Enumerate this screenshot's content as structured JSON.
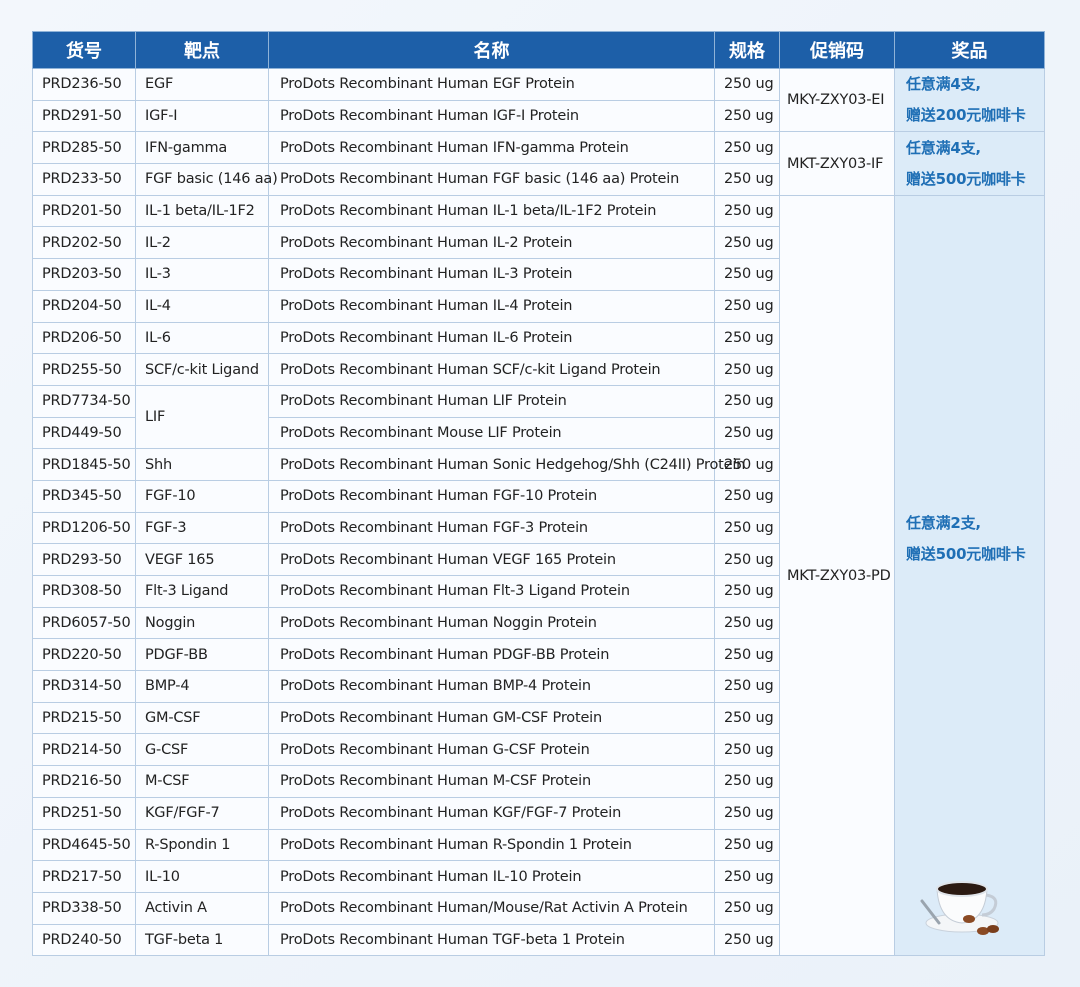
{
  "headers": [
    "货号",
    "靶点",
    "名称",
    "规格",
    "促销码",
    "奖品"
  ],
  "rows": [
    [
      "PRD236-50",
      "EGF",
      "ProDots Recombinant Human EGF Protein",
      "250 ug"
    ],
    [
      "PRD291-50",
      "IGF-I",
      "ProDots Recombinant Human IGF-I Protein",
      "250 ug"
    ],
    [
      "PRD285-50",
      "IFN-gamma",
      "ProDots Recombinant Human IFN-gamma Protein",
      "250 ug"
    ],
    [
      "PRD233-50",
      "FGF basic (146 aa)",
      "ProDots Recombinant Human FGF basic (146 aa) Protein",
      "250 ug"
    ],
    [
      "PRD201-50",
      "IL-1 beta/IL-1F2",
      "ProDots Recombinant Human IL-1 beta/IL-1F2 Protein",
      "250 ug"
    ],
    [
      "PRD202-50",
      "IL-2",
      "ProDots Recombinant Human IL-2 Protein",
      "250 ug"
    ],
    [
      "PRD203-50",
      "IL-3",
      "ProDots Recombinant Human IL-3 Protein",
      "250 ug"
    ],
    [
      "PRD204-50",
      "IL-4",
      "ProDots Recombinant Human IL-4 Protein",
      "250 ug"
    ],
    [
      "PRD206-50",
      "IL-6",
      "ProDots Recombinant Human IL-6 Protein",
      "250 ug"
    ],
    [
      "PRD255-50",
      "SCF/c-kit Ligand",
      "ProDots Recombinant Human SCF/c-kit Ligand Protein",
      "250 ug"
    ],
    [
      "PRD7734-50",
      "LIF",
      "ProDots Recombinant Human LIF Protein",
      "250 ug"
    ],
    [
      "PRD449-50",
      "",
      "ProDots Recombinant Mouse LIF Protein",
      "250 ug"
    ],
    [
      "PRD1845-50",
      "Shh",
      "ProDots Recombinant Human Sonic Hedgehog/Shh (C24II) Protein",
      "250 ug"
    ],
    [
      "PRD345-50",
      "FGF-10",
      "ProDots Recombinant Human FGF-10 Protein",
      "250 ug"
    ],
    [
      "PRD1206-50",
      "FGF-3",
      "ProDots Recombinant Human FGF-3 Protein",
      "250 ug"
    ],
    [
      "PRD293-50",
      "VEGF 165",
      "ProDots Recombinant Human VEGF 165 Protein",
      "250 ug"
    ],
    [
      "PRD308-50",
      "Flt-3 Ligand",
      "ProDots Recombinant Human Flt-3 Ligand Protein",
      "250 ug"
    ],
    [
      "PRD6057-50",
      "Noggin",
      "ProDots Recombinant Human Noggin Protein",
      "250 ug"
    ],
    [
      "PRD220-50",
      "PDGF-BB",
      "ProDots Recombinant Human PDGF-BB Protein",
      "250 ug"
    ],
    [
      "PRD314-50",
      "BMP-4",
      "ProDots Recombinant Human BMP-4 Protein",
      "250 ug"
    ],
    [
      "PRD215-50",
      "GM-CSF",
      "ProDots Recombinant Human GM-CSF Protein",
      "250 ug"
    ],
    [
      "PRD214-50",
      "G-CSF",
      "ProDots Recombinant Human G-CSF Protein",
      "250 ug"
    ],
    [
      "PRD216-50",
      "M-CSF",
      "ProDots Recombinant Human M-CSF Protein",
      "250 ug"
    ],
    [
      "PRD251-50",
      "KGF/FGF-7",
      "ProDots Recombinant Human KGF/FGF-7 Protein",
      "250 ug"
    ],
    [
      "PRD4645-50",
      "R-Spondin 1",
      "ProDots Recombinant Human R-Spondin 1 Protein",
      "250 ug"
    ],
    [
      "PRD217-50",
      "IL-10",
      "ProDots Recombinant Human IL-10 Protein",
      "250 ug"
    ],
    [
      "PRD338-50",
      "Activin A",
      "ProDots Recombinant Human/Mouse/Rat Activin A Protein",
      "250 ug"
    ],
    [
      "PRD240-50",
      "TGF-beta 1",
      "ProDots Recombinant Human TGF-beta 1 Protein",
      "250 ug"
    ]
  ],
  "promos": [
    {
      "code": "MKY-ZXY03-EI",
      "prize_line1": "任意满4支,",
      "prize_line2": "赠送200元咖啡卡",
      "rows": 2
    },
    {
      "code": "MKT-ZXY03-IF",
      "prize_line1": "任意满4支,",
      "prize_line2": "赠送500元咖啡卡",
      "rows": 2
    },
    {
      "code": "MKT-ZXY03-PD",
      "prize_line1": "任意满2支,",
      "prize_line2": "赠送500元咖啡卡",
      "rows": 24
    }
  ],
  "colors": {
    "header": "#1d5fa8",
    "prize_bg": "#dcebf8",
    "prize_text": "#1f6fb5"
  },
  "decoration_icon": "coffee-cup-icon"
}
